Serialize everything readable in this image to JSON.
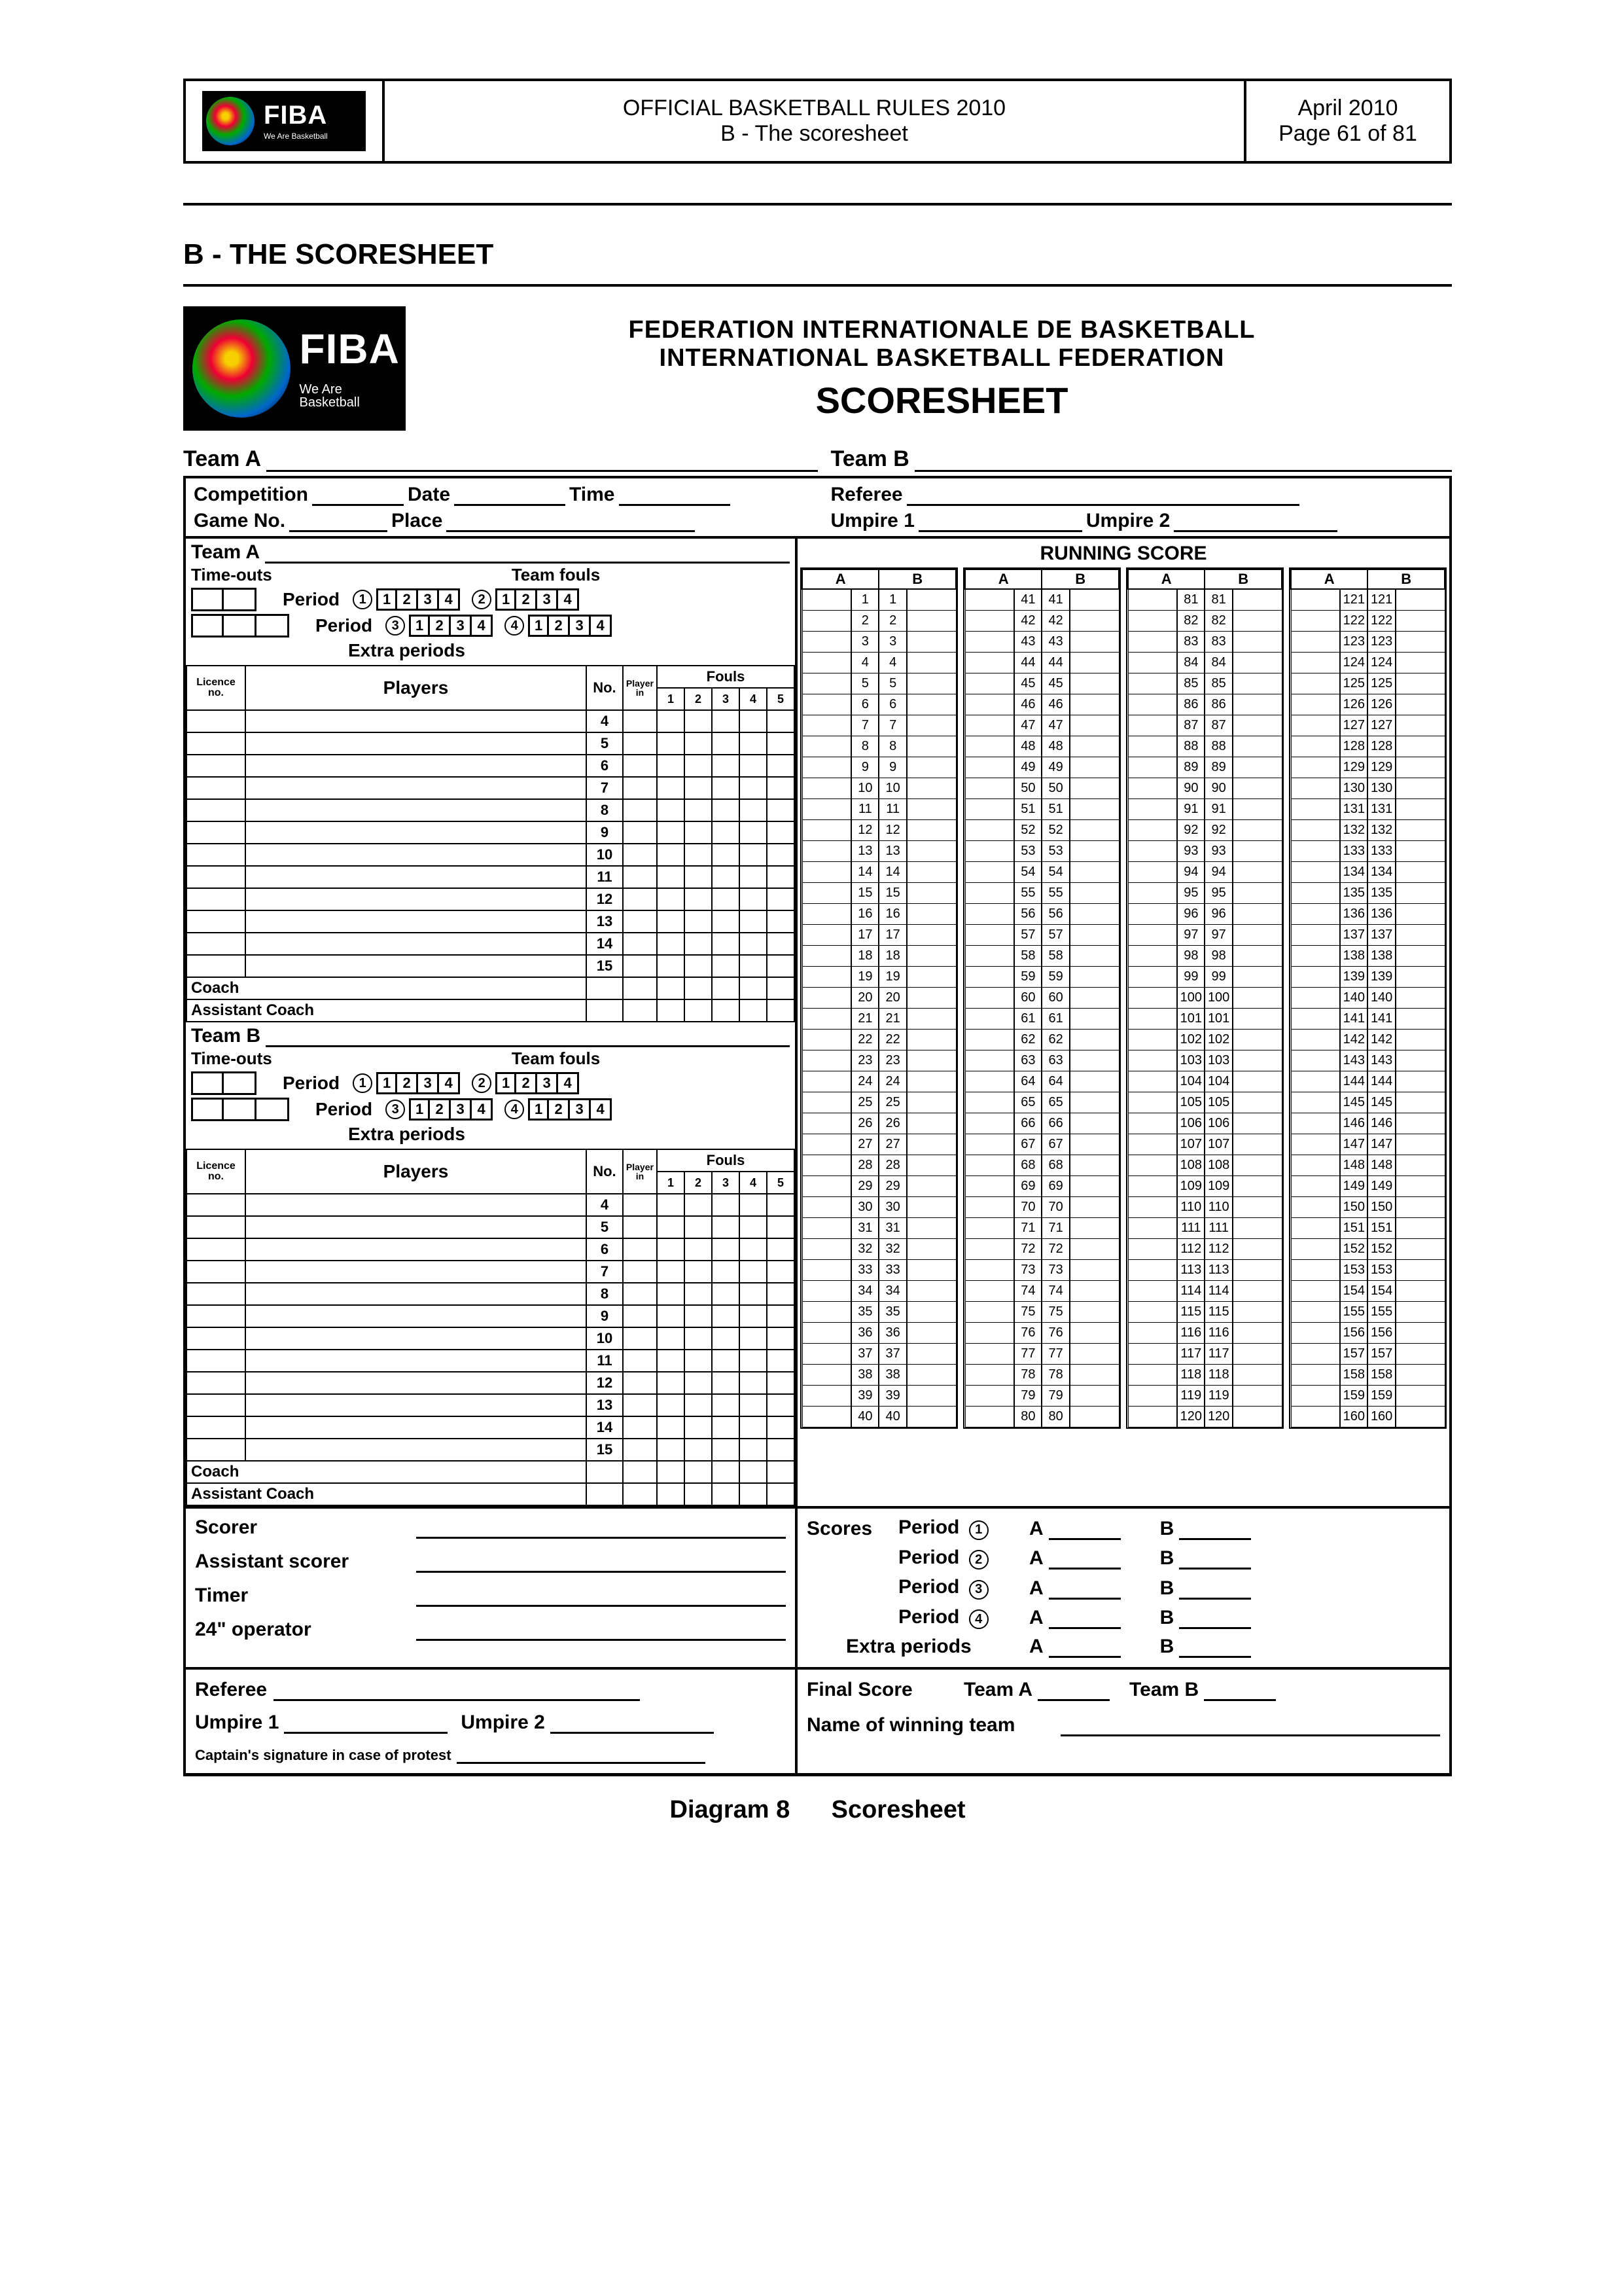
{
  "header": {
    "logo_text": "FIBA",
    "logo_tag": "We Are Basketball",
    "title1": "OFFICIAL BASKETBALL RULES 2010",
    "title2": "B - The scoresheet",
    "date": "April 2010",
    "page": "Page 61 of 81"
  },
  "section_title": "B - THE SCORESHEET",
  "sheet_header": {
    "line1": "FEDERATION  INTERNATIONALE  DE  BASKETBALL",
    "line2": "INTERNATIONAL  BASKETBALL  FEDERATION",
    "line3": "SCORESHEET"
  },
  "labels": {
    "team_a": "Team A",
    "team_b": "Team B",
    "competition": "Competition",
    "date": "Date",
    "time": "Time",
    "game_no": "Game No.",
    "place": "Place",
    "referee": "Referee",
    "umpire1": "Umpire 1",
    "umpire2": "Umpire 2",
    "time_outs": "Time-outs",
    "team_fouls": "Team fouls",
    "period": "Period",
    "extra_periods": "Extra periods",
    "licence_no": "Licence\nno.",
    "players": "Players",
    "no": "No.",
    "player_in": "Player\nin",
    "fouls": "Fouls",
    "coach": "Coach",
    "assistant_coach": "Assistant Coach",
    "running_score": "RUNNING SCORE",
    "scorer": "Scorer",
    "assistant_scorer": "Assistant scorer",
    "timer": "Timer",
    "operator24": "24\" operator",
    "scores": "Scores",
    "final_score": "Final Score",
    "winning": "Name of winning team",
    "captain_sig": "Captain's signature in case of protest",
    "A": "A",
    "B": "B"
  },
  "team_fouls_nums": [
    "1",
    "2",
    "3",
    "4"
  ],
  "fouls_cols": [
    "1",
    "2",
    "3",
    "4",
    "5"
  ],
  "player_numbers": [
    "4",
    "5",
    "6",
    "7",
    "8",
    "9",
    "10",
    "11",
    "12",
    "13",
    "14",
    "15"
  ],
  "running_score": {
    "columns": 4,
    "col_headers": [
      "A",
      "B"
    ],
    "ranges": [
      [
        1,
        40
      ],
      [
        41,
        80
      ],
      [
        81,
        120
      ],
      [
        121,
        160
      ]
    ]
  },
  "periods_list": [
    "①",
    "②",
    "③",
    "④"
  ],
  "team_panel_periods": [
    {
      "circ": "①",
      "with_second": true,
      "second_circ": "②"
    },
    {
      "circ": "③",
      "with_second": true,
      "second_circ": "④"
    }
  ],
  "diagram_caption_left": "Diagram 8",
  "diagram_caption_right": "Scoresheet",
  "styles": {
    "border_color": "#000000",
    "background": "#ffffff",
    "font_family": "Arial, Helvetica, sans-serif"
  }
}
